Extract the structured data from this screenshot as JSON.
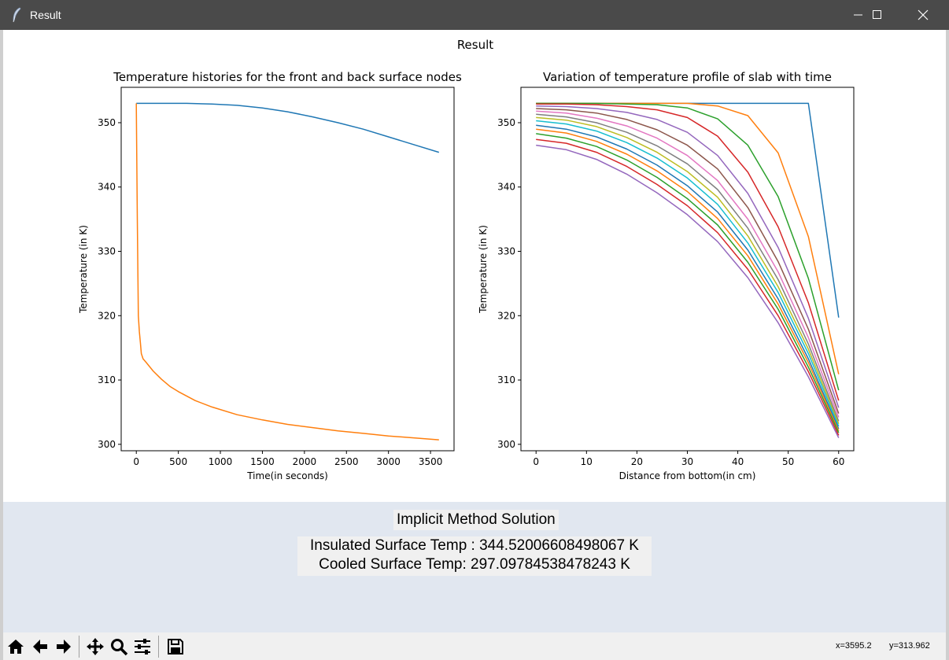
{
  "window": {
    "title": "Result",
    "controls": [
      "minimize-icon",
      "maximize-icon",
      "close-icon"
    ]
  },
  "figure": {
    "suptitle": "Result"
  },
  "chart_data": [
    {
      "type": "line",
      "title": "Temperature histories for the front and back surface nodes",
      "xlabel": "Time(in seconds)",
      "ylabel": "Temperature (in K)",
      "xlim": [
        -180,
        3780
      ],
      "ylim": [
        299,
        355.5
      ],
      "xticks": [
        0,
        500,
        1000,
        1500,
        2000,
        2500,
        3000,
        3500
      ],
      "yticks": [
        300,
        310,
        320,
        330,
        340,
        350
      ],
      "series": [
        {
          "color": "#1f77b4",
          "x": [
            0,
            300,
            600,
            900,
            1200,
            1500,
            1800,
            2100,
            2400,
            2700,
            3000,
            3300,
            3600
          ],
          "y": [
            353.0,
            353.0,
            353.0,
            352.9,
            352.7,
            352.3,
            351.7,
            350.9,
            350.0,
            349.0,
            347.8,
            346.6,
            345.4
          ]
        },
        {
          "color": "#ff7f0e",
          "x": [
            0,
            12,
            24,
            36,
            48,
            60,
            80,
            120,
            200,
            300,
            400,
            500,
            700,
            900,
            1200,
            1500,
            1800,
            2100,
            2400,
            2700,
            3000,
            3300,
            3600
          ],
          "y": [
            353.0,
            335.0,
            320.0,
            317.5,
            315.8,
            314.1,
            313.3,
            312.7,
            311.4,
            310.1,
            309.0,
            308.2,
            306.8,
            305.8,
            304.6,
            303.8,
            303.1,
            302.6,
            302.1,
            301.7,
            301.3,
            301.0,
            300.7
          ]
        }
      ]
    },
    {
      "type": "line",
      "title": "Variation of temperature profile of slab with time",
      "xlabel": "Distance from bottom(in cm)",
      "ylabel": "Temperature (in K)",
      "xlim": [
        -3,
        63
      ],
      "ylim": [
        299,
        355.5
      ],
      "xticks": [
        0,
        10,
        20,
        30,
        40,
        50,
        60
      ],
      "yticks": [
        300,
        310,
        320,
        330,
        340,
        350
      ],
      "x": [
        0,
        6,
        12,
        18,
        24,
        30,
        36,
        42,
        48,
        54,
        60
      ],
      "series": [
        {
          "color": "#1f77b4",
          "y": [
            353.0,
            353.0,
            353.0,
            353.0,
            353.0,
            353.0,
            353.0,
            353.0,
            353.0,
            353.0,
            319.7
          ]
        },
        {
          "color": "#ff7f0e",
          "y": [
            353.0,
            353.0,
            353.0,
            353.0,
            353.0,
            353.0,
            352.6,
            351.1,
            345.3,
            332.3,
            310.9
          ]
        },
        {
          "color": "#2ca02c",
          "y": [
            353.0,
            353.0,
            353.0,
            352.9,
            352.8,
            352.3,
            350.6,
            346.5,
            338.5,
            325.8,
            308.4
          ]
        },
        {
          "color": "#d62728",
          "y": [
            352.9,
            352.9,
            352.8,
            352.5,
            352.0,
            350.8,
            347.9,
            342.3,
            333.8,
            322.0,
            306.8
          ]
        },
        {
          "color": "#9467bd",
          "y": [
            352.6,
            352.5,
            352.2,
            351.6,
            350.5,
            348.5,
            344.9,
            339.0,
            330.6,
            319.6,
            305.7
          ]
        },
        {
          "color": "#8c564b",
          "y": [
            352.2,
            352.0,
            351.5,
            350.5,
            348.9,
            346.5,
            342.8,
            336.8,
            328.4,
            317.9,
            304.8
          ]
        },
        {
          "color": "#e377c2",
          "y": [
            351.8,
            351.5,
            350.7,
            349.5,
            347.6,
            344.9,
            341.0,
            335.0,
            326.8,
            316.6,
            304.2
          ]
        },
        {
          "color": "#7f7f7f",
          "y": [
            351.3,
            350.9,
            350.0,
            348.5,
            346.4,
            343.6,
            339.6,
            333.6,
            325.6,
            315.6,
            303.6
          ]
        },
        {
          "color": "#bcbd22",
          "y": [
            350.8,
            350.4,
            349.4,
            347.7,
            345.4,
            342.4,
            338.4,
            332.4,
            324.5,
            314.8,
            303.2
          ]
        },
        {
          "color": "#17becf",
          "y": [
            350.3,
            349.8,
            348.7,
            346.9,
            344.5,
            341.4,
            337.3,
            331.3,
            323.6,
            314.1,
            302.8
          ]
        },
        {
          "color": "#1f77b4",
          "y": [
            349.6,
            349.0,
            347.8,
            345.9,
            343.4,
            340.2,
            336.1,
            330.2,
            322.6,
            313.3,
            302.4
          ]
        },
        {
          "color": "#ff7f0e",
          "y": [
            349.0,
            348.4,
            347.1,
            345.1,
            342.5,
            339.3,
            335.1,
            329.3,
            321.8,
            312.7,
            302.1
          ]
        },
        {
          "color": "#2ca02c",
          "y": [
            348.3,
            347.6,
            346.3,
            344.2,
            341.5,
            338.2,
            334.1,
            328.3,
            321.0,
            312.0,
            301.8
          ]
        },
        {
          "color": "#d62728",
          "y": [
            347.4,
            346.8,
            345.4,
            343.2,
            340.4,
            337.1,
            332.9,
            327.2,
            320.0,
            311.3,
            301.4
          ]
        },
        {
          "color": "#9467bd",
          "y": [
            346.5,
            345.8,
            344.3,
            342.0,
            339.1,
            335.7,
            331.5,
            325.9,
            318.9,
            310.5,
            301.0
          ]
        }
      ]
    }
  ],
  "panel": {
    "heading": "Implicit Method Solution",
    "insulated": "Insulated Surface Temp : 344.52006608498067 K",
    "cooled": "Cooled Surface Temp: 297.09784538478243 K"
  },
  "toolbar": {
    "buttons": [
      "home-icon",
      "back-icon",
      "forward-icon",
      "pan-icon",
      "zoom-icon",
      "configure-subplots-icon",
      "save-icon"
    ],
    "coord_x": "x=3595.2",
    "coord_y": "y=313.962"
  }
}
